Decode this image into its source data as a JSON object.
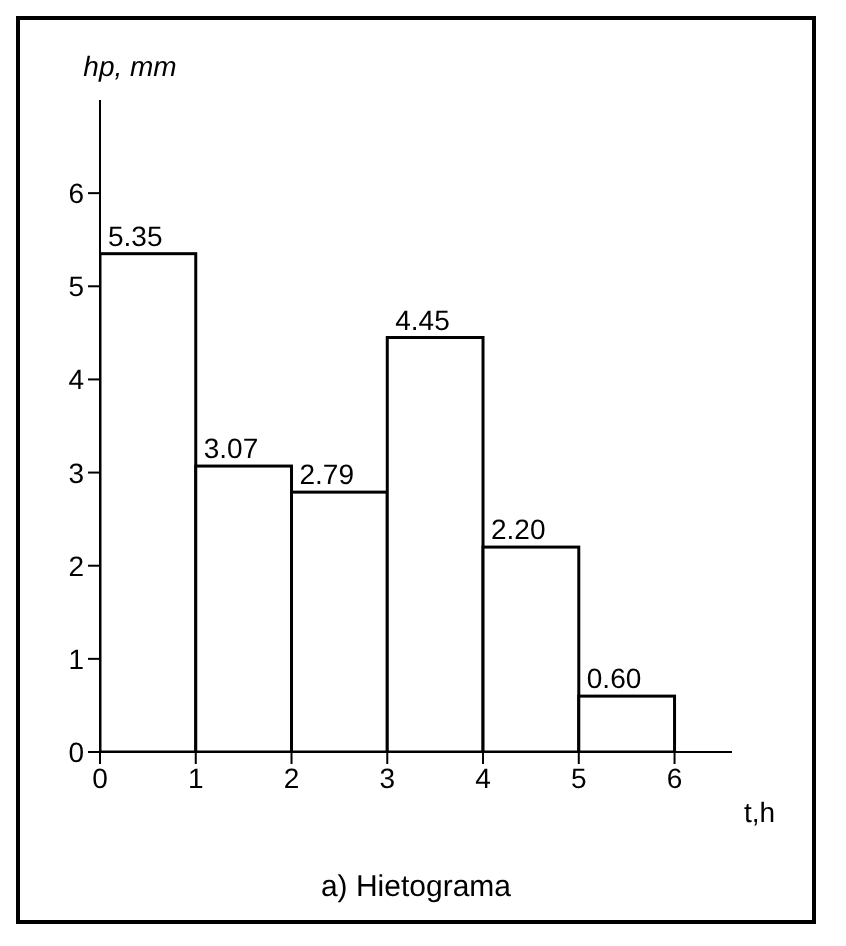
{
  "chart_data": {
    "type": "histogram",
    "title": "a) Hietograma",
    "xlabel": "t,h",
    "ylabel": "hp, mm",
    "bins": [
      0,
      1,
      2,
      3,
      4,
      5,
      6
    ],
    "values": [
      5.35,
      3.07,
      2.79,
      4.45,
      2.2,
      0.6
    ],
    "value_labels": [
      "5.35",
      "3.07",
      "2.79",
      "4.45",
      "2.20",
      "0.60"
    ],
    "color": "#ffffff",
    "xlim": [
      0,
      6.6
    ],
    "xticks": [
      0,
      1,
      2,
      3,
      4,
      5,
      6
    ],
    "ylim": [
      0,
      7
    ],
    "yticks": [
      0,
      1,
      2,
      3,
      4,
      5,
      6
    ]
  }
}
